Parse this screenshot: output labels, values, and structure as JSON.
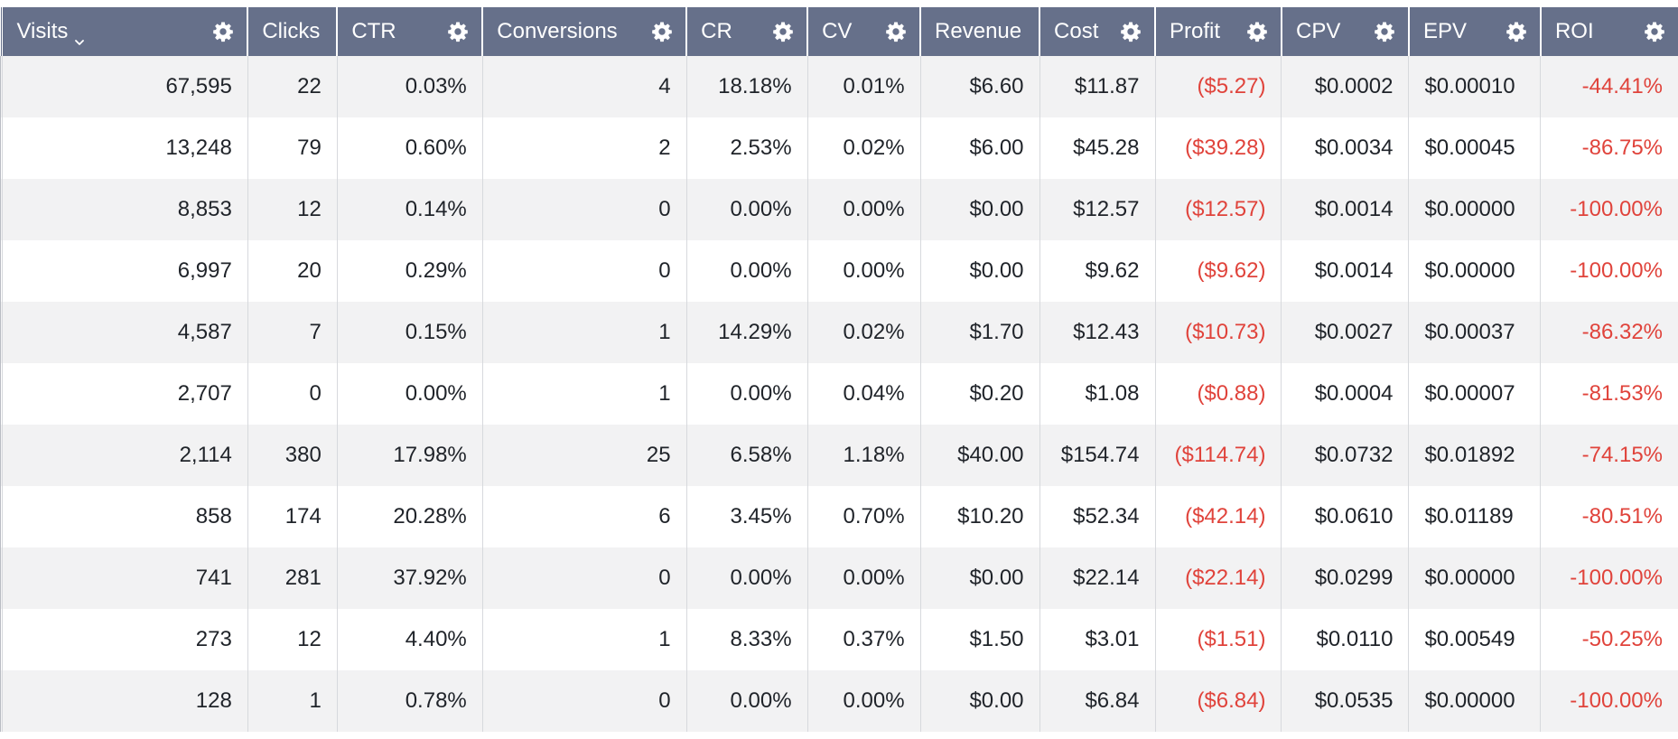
{
  "colors": {
    "header_bg": "#66708a",
    "negative": "#e0433b",
    "row_alt": "#f2f2f3"
  },
  "columns": [
    {
      "key": "visits",
      "label": "Visits",
      "sortable": true,
      "sort_icon": "chevron-down-icon",
      "settings": true,
      "align": "right",
      "width": 272
    },
    {
      "key": "clicks",
      "label": "Clicks",
      "settings": false,
      "align": "right",
      "width": 99
    },
    {
      "key": "ctr",
      "label": "CTR",
      "settings": true,
      "align": "right",
      "width": 161
    },
    {
      "key": "conversions",
      "label": "Conversions",
      "settings": true,
      "align": "right",
      "width": 226
    },
    {
      "key": "cr",
      "label": "CR",
      "settings": true,
      "align": "right",
      "width": 134
    },
    {
      "key": "cv",
      "label": "CV",
      "settings": true,
      "align": "right",
      "width": 125
    },
    {
      "key": "revenue",
      "label": "Revenue",
      "settings": false,
      "align": "right",
      "width": 132
    },
    {
      "key": "cost",
      "label": "Cost",
      "settings": true,
      "align": "right",
      "width": 128
    },
    {
      "key": "profit",
      "label": "Profit",
      "settings": true,
      "align": "right",
      "width": 140,
      "negative": true
    },
    {
      "key": "cpv",
      "label": "CPV",
      "settings": true,
      "align": "right",
      "width": 141
    },
    {
      "key": "epv",
      "label": "EPV",
      "settings": true,
      "align": "left",
      "width": 146
    },
    {
      "key": "roi",
      "label": "ROI",
      "settings": true,
      "align": "right",
      "width": 152,
      "negative": true
    }
  ],
  "rows": [
    {
      "visits": "67,595",
      "clicks": "22",
      "ctr": "0.03%",
      "conversions": "4",
      "cr": "18.18%",
      "cv": "0.01%",
      "revenue": "$6.60",
      "cost": "$11.87",
      "profit": "($5.27)",
      "cpv": "$0.0002",
      "epv": "$0.00010",
      "roi": "-44.41%"
    },
    {
      "visits": "13,248",
      "clicks": "79",
      "ctr": "0.60%",
      "conversions": "2",
      "cr": "2.53%",
      "cv": "0.02%",
      "revenue": "$6.00",
      "cost": "$45.28",
      "profit": "($39.28)",
      "cpv": "$0.0034",
      "epv": "$0.00045",
      "roi": "-86.75%"
    },
    {
      "visits": "8,853",
      "clicks": "12",
      "ctr": "0.14%",
      "conversions": "0",
      "cr": "0.00%",
      "cv": "0.00%",
      "revenue": "$0.00",
      "cost": "$12.57",
      "profit": "($12.57)",
      "cpv": "$0.0014",
      "epv": "$0.00000",
      "roi": "-100.00%"
    },
    {
      "visits": "6,997",
      "clicks": "20",
      "ctr": "0.29%",
      "conversions": "0",
      "cr": "0.00%",
      "cv": "0.00%",
      "revenue": "$0.00",
      "cost": "$9.62",
      "profit": "($9.62)",
      "cpv": "$0.0014",
      "epv": "$0.00000",
      "roi": "-100.00%"
    },
    {
      "visits": "4,587",
      "clicks": "7",
      "ctr": "0.15%",
      "conversions": "1",
      "cr": "14.29%",
      "cv": "0.02%",
      "revenue": "$1.70",
      "cost": "$12.43",
      "profit": "($10.73)",
      "cpv": "$0.0027",
      "epv": "$0.00037",
      "roi": "-86.32%"
    },
    {
      "visits": "2,707",
      "clicks": "0",
      "ctr": "0.00%",
      "conversions": "1",
      "cr": "0.00%",
      "cv": "0.04%",
      "revenue": "$0.20",
      "cost": "$1.08",
      "profit": "($0.88)",
      "cpv": "$0.0004",
      "epv": "$0.00007",
      "roi": "-81.53%"
    },
    {
      "visits": "2,114",
      "clicks": "380",
      "ctr": "17.98%",
      "conversions": "25",
      "cr": "6.58%",
      "cv": "1.18%",
      "revenue": "$40.00",
      "cost": "$154.74",
      "profit": "($114.74)",
      "cpv": "$0.0732",
      "epv": "$0.01892",
      "roi": "-74.15%"
    },
    {
      "visits": "858",
      "clicks": "174",
      "ctr": "20.28%",
      "conversions": "6",
      "cr": "3.45%",
      "cv": "0.70%",
      "revenue": "$10.20",
      "cost": "$52.34",
      "profit": "($42.14)",
      "cpv": "$0.0610",
      "epv": "$0.01189",
      "roi": "-80.51%"
    },
    {
      "visits": "741",
      "clicks": "281",
      "ctr": "37.92%",
      "conversions": "0",
      "cr": "0.00%",
      "cv": "0.00%",
      "revenue": "$0.00",
      "cost": "$22.14",
      "profit": "($22.14)",
      "cpv": "$0.0299",
      "epv": "$0.00000",
      "roi": "-100.00%"
    },
    {
      "visits": "273",
      "clicks": "12",
      "ctr": "4.40%",
      "conversions": "1",
      "cr": "8.33%",
      "cv": "0.37%",
      "revenue": "$1.50",
      "cost": "$3.01",
      "profit": "($1.51)",
      "cpv": "$0.0110",
      "epv": "$0.00549",
      "roi": "-50.25%"
    },
    {
      "visits": "128",
      "clicks": "1",
      "ctr": "0.78%",
      "conversions": "0",
      "cr": "0.00%",
      "cv": "0.00%",
      "revenue": "$0.00",
      "cost": "$6.84",
      "profit": "($6.84)",
      "cpv": "$0.0535",
      "epv": "$0.00000",
      "roi": "-100.00%"
    }
  ]
}
